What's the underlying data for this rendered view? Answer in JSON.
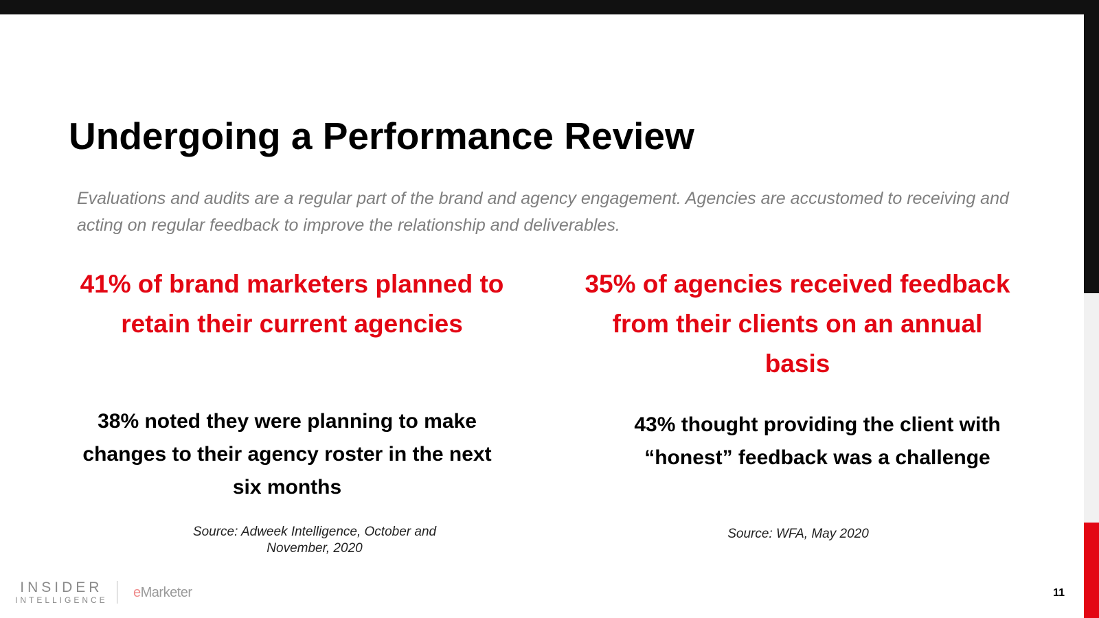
{
  "slide": {
    "title": "Undergoing a Performance Review",
    "subtitle": "Evaluations and audits are a regular part of the brand and agency engagement. Agencies are accustomed to receiving and acting on regular feedback to improve the relationship and deliverables.",
    "page_number": "11"
  },
  "stats": [
    {
      "headline": "41% of brand marketers planned to retain their current agencies",
      "detail": "38% noted they were planning to make changes to their agency roster in the next six months",
      "source": "Source: Adweek Intelligence, October and November, 2020"
    },
    {
      "headline": "35% of agencies received feedback from their clients on an annual basis",
      "detail": "43% thought providing the client with “honest” feedback was a challenge",
      "source": "Source: WFA, May 2020"
    }
  ],
  "footer": {
    "logo_insider_line1": "INSIDER",
    "logo_insider_line2": "INTELLIGENCE",
    "logo_emarketer_e": "e",
    "logo_emarketer_rest": "Marketer"
  },
  "colors": {
    "accent_red": "#e30613",
    "bar_dark": "#111111",
    "subtitle_gray": "#7f7f7f"
  }
}
